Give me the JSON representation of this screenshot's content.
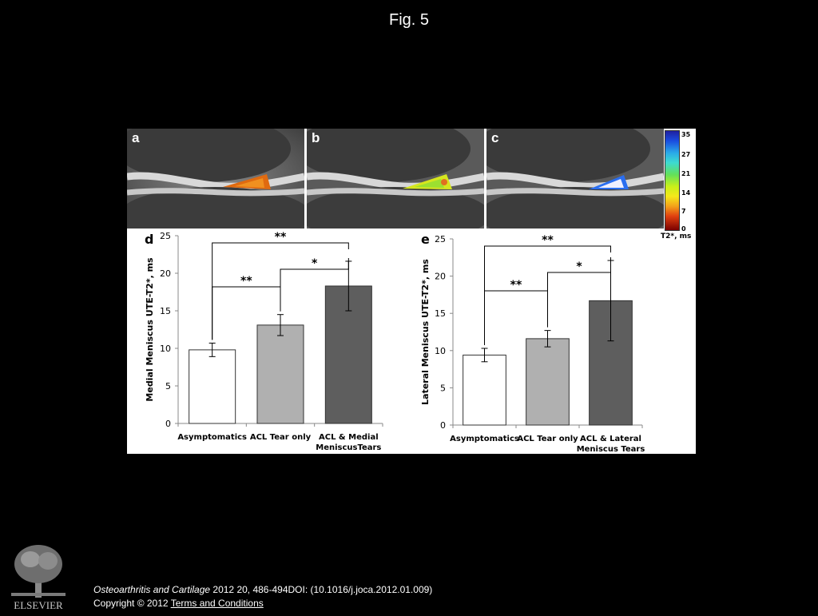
{
  "figure": {
    "title": "Fig. 5"
  },
  "panels": {
    "a": "a",
    "b": "b",
    "c": "c",
    "d": "d",
    "e": "e"
  },
  "colorbar": {
    "ticks": [
      "35",
      "27",
      "21",
      "14",
      "7",
      "0"
    ],
    "label": "T2*, ms"
  },
  "chart_data": [
    {
      "type": "bar",
      "panel": "d",
      "categories": [
        "Asymptomatics",
        "ACL Tear only",
        "ACL & Medial MeniscusTears"
      ],
      "category_lines": [
        [
          "Asymptomatics"
        ],
        [
          "ACL Tear only"
        ],
        [
          "ACL & Medial",
          "MeniscusTears"
        ]
      ],
      "values": [
        9.8,
        13.1,
        18.3
      ],
      "errors": [
        0.9,
        1.4,
        3.3
      ],
      "bar_colors": [
        "#ffffff",
        "#b0b0b0",
        "#5e5e5e"
      ],
      "ylabel": "Medial Meniscus UTE-T2*, ms",
      "ylim": [
        0,
        25
      ],
      "yticks": [
        "0",
        "5",
        "10",
        "15",
        "20",
        "25"
      ],
      "significance": [
        {
          "from": 0,
          "to": 2,
          "label": "**"
        },
        {
          "from": 1,
          "to": 2,
          "label": "*"
        },
        {
          "from": 0,
          "to": 1,
          "label": "**"
        }
      ]
    },
    {
      "type": "bar",
      "panel": "e",
      "categories": [
        "Asymptomatics",
        "ACL Tear only",
        "ACL & Lateral Meniscus Tears"
      ],
      "category_lines": [
        [
          "Asymptomatics"
        ],
        [
          "ACL Tear only"
        ],
        [
          "ACL & Lateral",
          "Meniscus Tears"
        ]
      ],
      "values": [
        9.4,
        11.6,
        16.7
      ],
      "errors": [
        0.9,
        1.1,
        5.4
      ],
      "bar_colors": [
        "#ffffff",
        "#b0b0b0",
        "#5e5e5e"
      ],
      "ylabel": "Lateral Meniscus UTE-T2*, ms",
      "ylim": [
        0,
        25
      ],
      "yticks": [
        "0",
        "5",
        "10",
        "15",
        "20",
        "25"
      ],
      "significance": [
        {
          "from": 0,
          "to": 2,
          "label": "**"
        },
        {
          "from": 1,
          "to": 2,
          "label": "*"
        },
        {
          "from": 0,
          "to": 1,
          "label": "**"
        }
      ]
    }
  ],
  "footer": {
    "journal": "Osteoarthritis and Cartilage",
    "citation": " 2012 20, 486-494DOI: (10.1016/j.joca.2012.01.009)",
    "copyright": "Copyright © 2012 ",
    "terms_link": " Terms and Conditions"
  },
  "logo": {
    "text": "ELSEVIER"
  }
}
